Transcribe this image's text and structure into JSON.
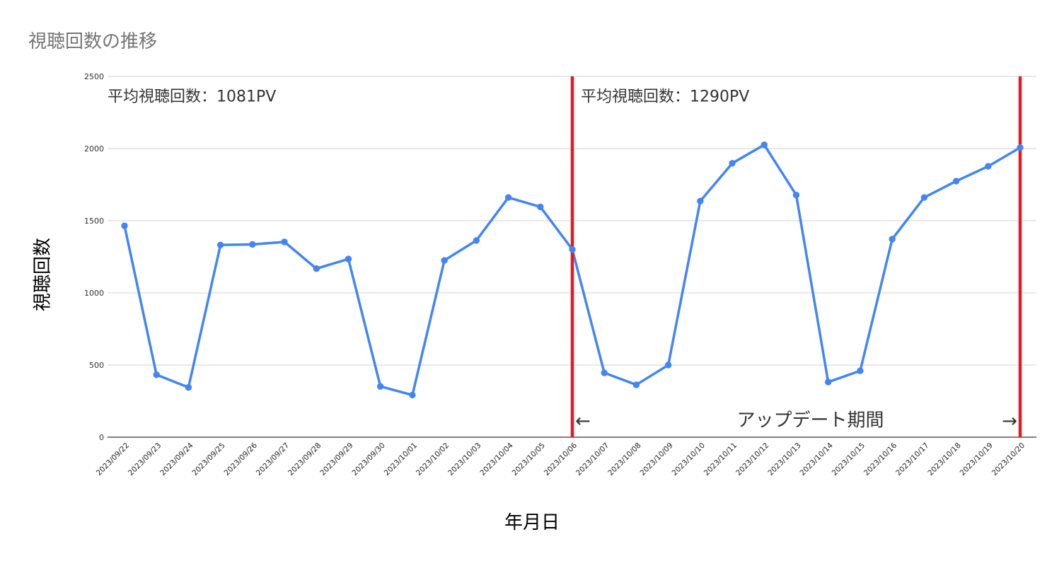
{
  "chart_data": {
    "type": "line",
    "title": "視聴回数の推移",
    "xlabel": "年月日",
    "ylabel": "視聴回数",
    "ylim": [
      0,
      2500
    ],
    "yticks": [
      0,
      500,
      1000,
      1500,
      2000,
      2500
    ],
    "grid": true,
    "legend": "none",
    "colors": {
      "series": "#4285f4",
      "marker": "#ffffff",
      "update_lines": "#e31b23",
      "grid": "#d0d0d0",
      "axis": "#333333"
    },
    "categories": [
      "2023/09/22",
      "2023/09/23",
      "2023/09/24",
      "2023/09/25",
      "2023/09/26",
      "2023/09/27",
      "2023/09/28",
      "2023/09/29",
      "2023/09/30",
      "2023/10/01",
      "2023/10/02",
      "2023/10/03",
      "2023/10/04",
      "2023/10/05",
      "2023/10/06",
      "2023/10/07",
      "2023/10/08",
      "2023/10/09",
      "2023/10/10",
      "2023/10/11",
      "2023/10/12",
      "2023/10/13",
      "2023/10/14",
      "2023/10/15",
      "2023/10/16",
      "2023/10/17",
      "2023/10/18",
      "2023/10/19",
      "2023/10/20"
    ],
    "series": [
      {
        "values": [
          1465,
          433,
          345,
          1332,
          1336,
          1353,
          1168,
          1235,
          352,
          292,
          1225,
          1363,
          1661,
          1596,
          1301,
          446,
          363,
          500,
          1636,
          1898,
          2026,
          1678,
          382,
          460,
          1372,
          1661,
          1774,
          1877,
          2007
        ]
      }
    ],
    "markers": [
      {
        "type": "vertical-line",
        "x": "2023/10/06"
      },
      {
        "type": "vertical-line",
        "x": "2023/10/20"
      }
    ],
    "annotations": [
      {
        "text": "平均視聴回数：1081PV",
        "x": "2023/09/22",
        "y": 2400
      },
      {
        "text": "平均視聴回数：1290PV",
        "x": "2023/10/06",
        "y": 2400
      },
      {
        "text": "アップデート期間",
        "x": "2023/10/13",
        "y": 150
      },
      {
        "text": "←",
        "x": "2023/10/06",
        "y": 150
      },
      {
        "text": "→",
        "x": "2023/10/20",
        "y": 150
      }
    ]
  }
}
